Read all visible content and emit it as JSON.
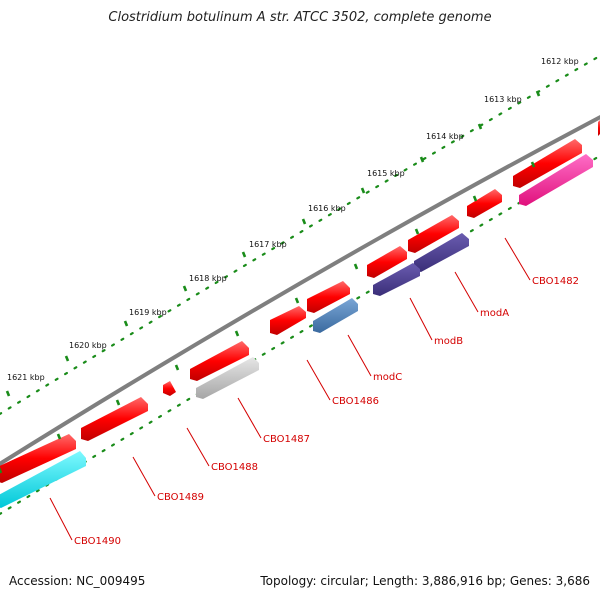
{
  "title": "Clostridium botulinum A str. ATCC 3502, complete genome",
  "footer": {
    "accession": "Accession: NC_009495",
    "topology": "Topology: circular; Length: 3,886,916 bp; Genes: 3,686"
  },
  "scale_ticks": [
    "1612 kbp",
    "1613 kbp",
    "1614 kbp",
    "1615 kbp",
    "1616 kbp",
    "1617 kbp",
    "1618 kbp",
    "1619 kbp",
    "1620 kbp",
    "1621 kbp"
  ],
  "genes": [
    "CBO1482",
    "modA",
    "modB",
    "modC",
    "CBO1486",
    "CBO1487",
    "CBO1488",
    "CBO1489",
    "CBO1490"
  ],
  "colors": {
    "backbone": "#7f7f7f",
    "scale_dots": "#1a8c1a",
    "forward_gene": "#ff0000",
    "label": "#d40000",
    "CBO1482": "#ff1493",
    "modA": "#4b3d8f",
    "modB": "#4b3d8f",
    "modC": "#4a7fb5",
    "CBO1487": "#c0c0c0",
    "CBO1490": "#00e5ee"
  }
}
